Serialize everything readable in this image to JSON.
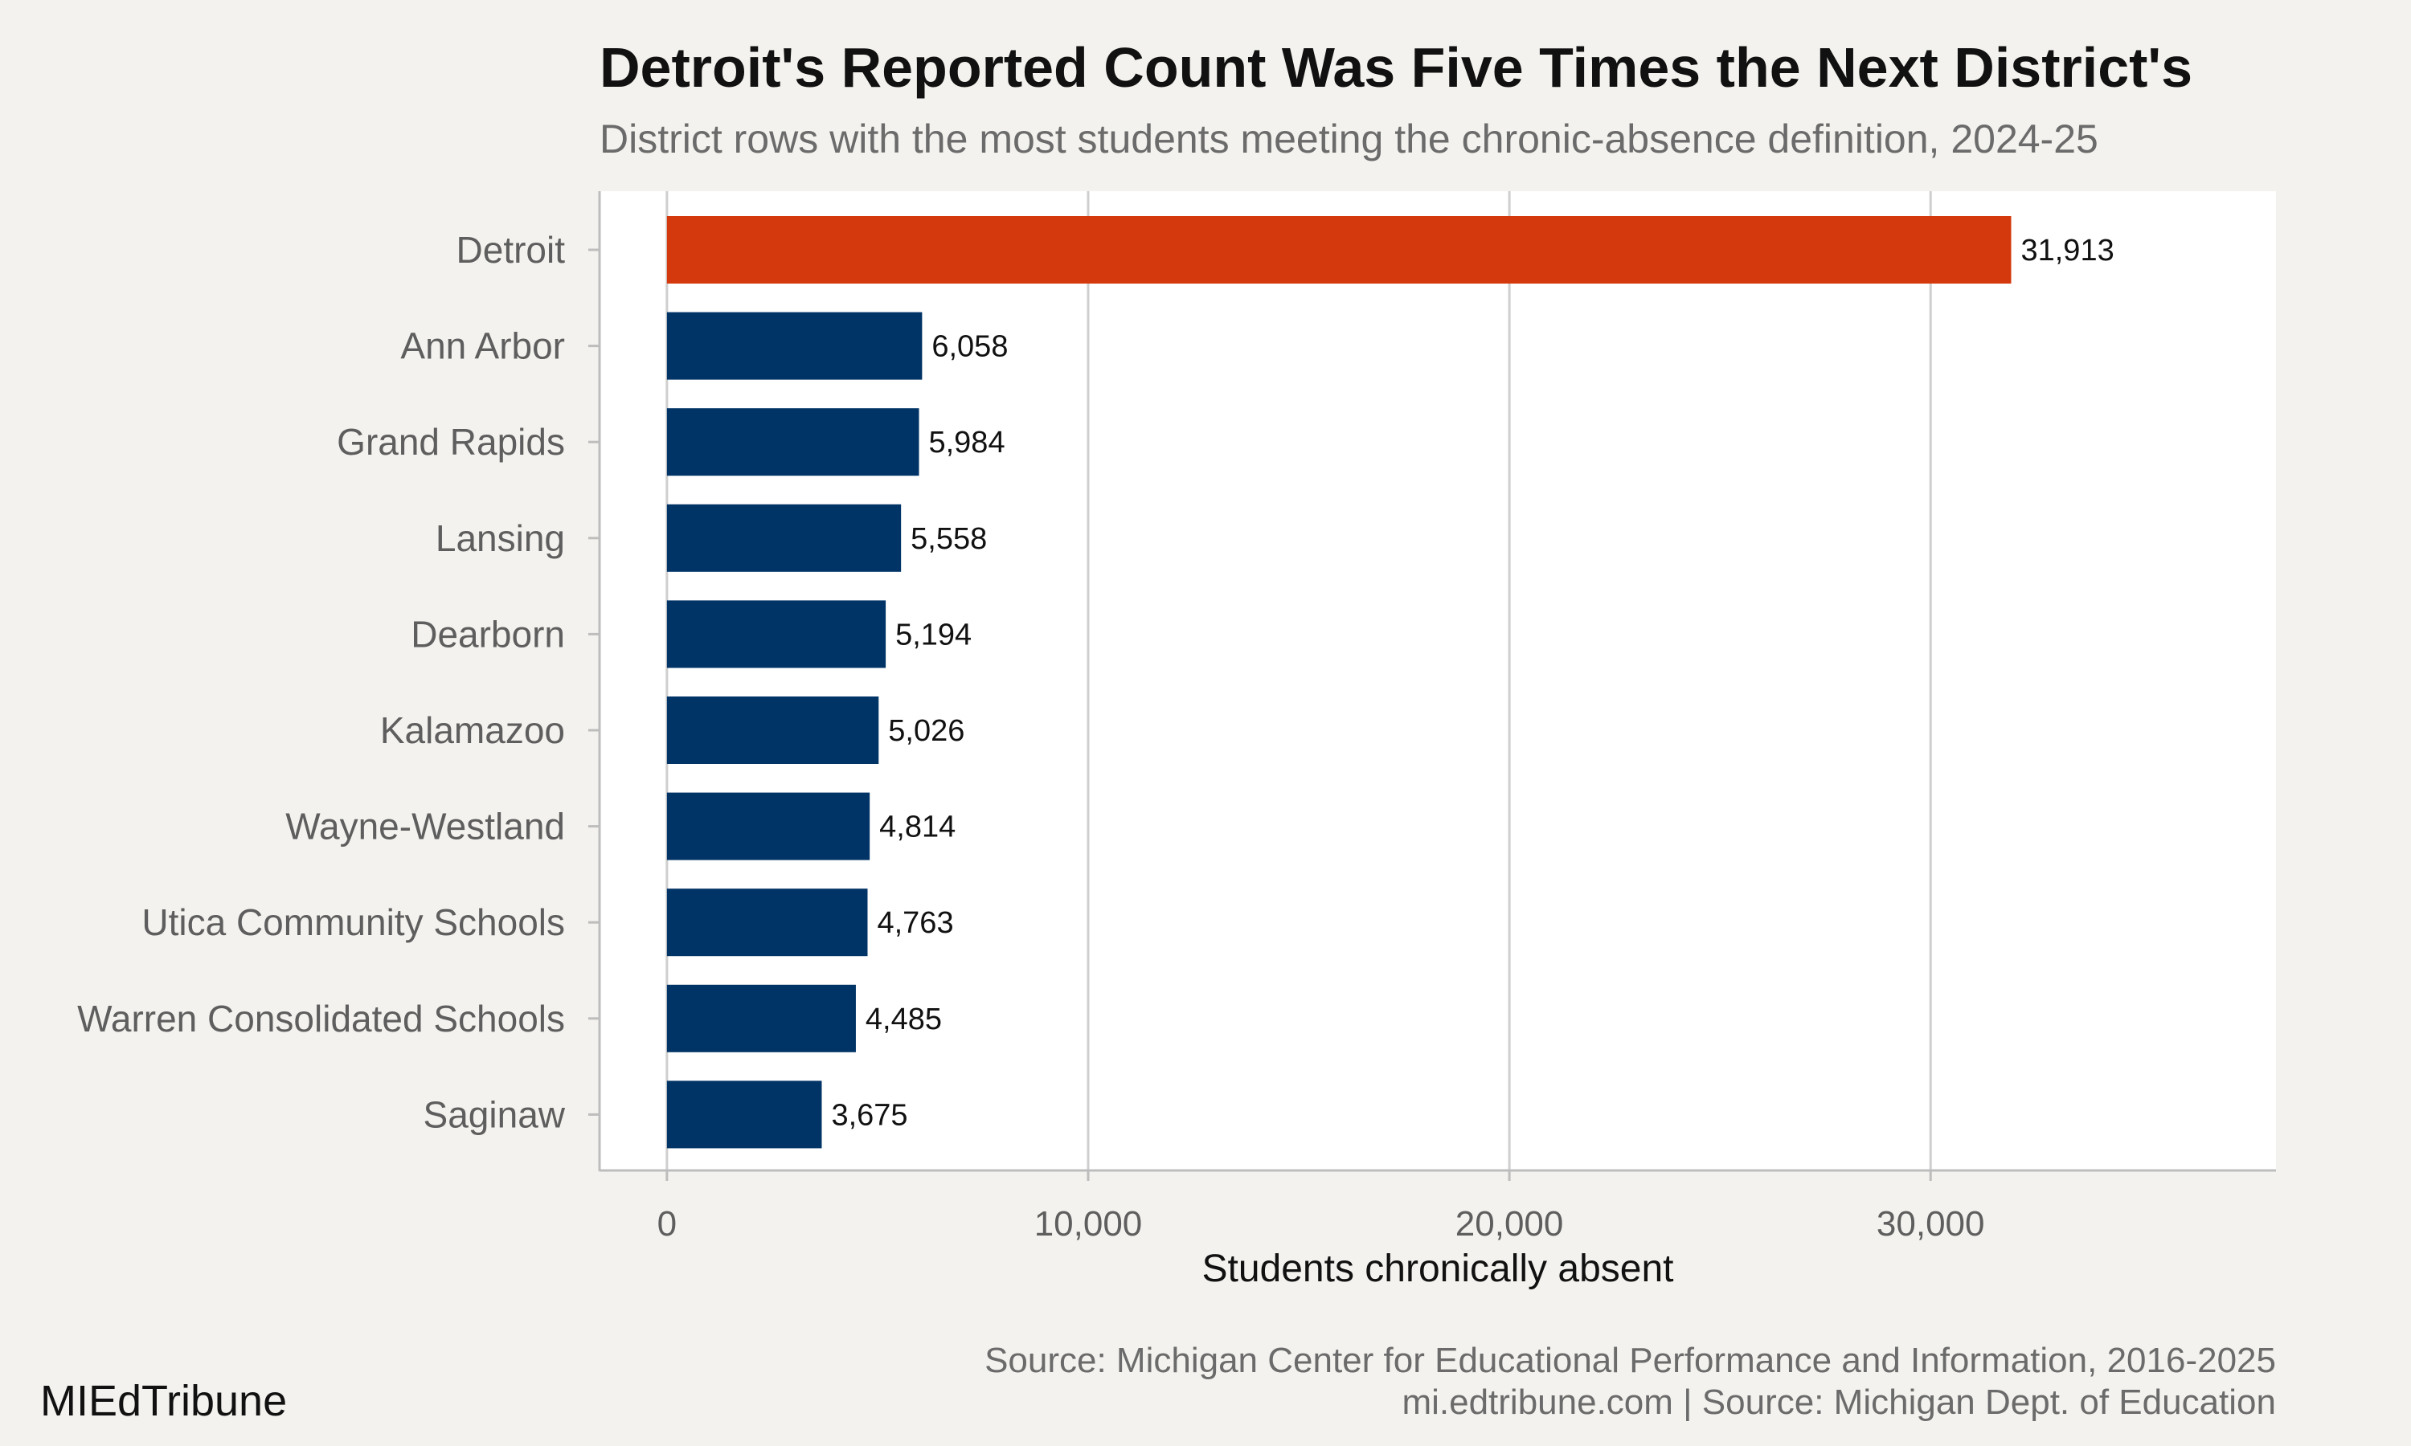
{
  "title": "Detroit's Reported Count Was Five Times the Next District's",
  "subtitle": "District rows with the most students meeting the chronic-absence definition, 2024-25",
  "source_line_1": "Source: Michigan Center for Educational Performance and Information, 2016-2025",
  "source_line_2": "mi.edtribune.com | Source: Michigan Dept. of Education",
  "brand": "MIEdTribune",
  "colors": {
    "highlight": "#d4380d",
    "bar": "#003366",
    "panel": "#ffffff",
    "background": "#f4f2ee",
    "grid": "#cfcfcf"
  },
  "chart_data": {
    "type": "bar",
    "orientation": "horizontal",
    "categories": [
      "Detroit",
      "Ann Arbor",
      "Grand Rapids",
      "Lansing",
      "Dearborn",
      "Kalamazoo",
      "Wayne-Westland",
      "Utica Community Schools",
      "Warren Consolidated Schools",
      "Saginaw"
    ],
    "values": [
      31913,
      6058,
      5984,
      5558,
      5194,
      5026,
      4814,
      4763,
      4485,
      3675
    ],
    "value_labels": [
      "31,913",
      "6,058",
      "5,984",
      "5,558",
      "5,194",
      "5,026",
      "4,814",
      "4,763",
      "4,485",
      "3,675"
    ],
    "highlight_index": 0,
    "xlabel": "Students chronically absent",
    "ylabel": "",
    "xlim": [
      -1600,
      38200
    ],
    "ticks": [
      0,
      10000,
      20000,
      30000
    ],
    "tick_labels": [
      "0",
      "10,000",
      "20,000",
      "30,000"
    ],
    "grid": "vertical"
  }
}
